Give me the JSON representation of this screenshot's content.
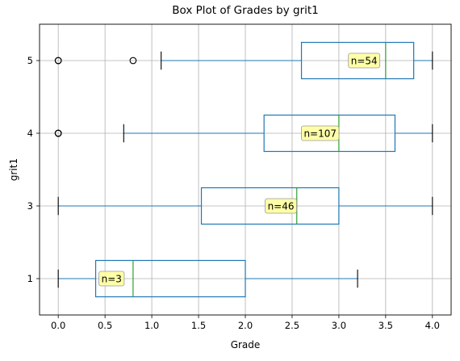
{
  "chart_data": {
    "type": "box",
    "title": "Box Plot of Grades by grit1",
    "xlabel": "Grade",
    "ylabel": "grit1",
    "orientation": "horizontal",
    "xlim": [
      -0.2,
      4.2
    ],
    "xticks": [
      "0.0",
      "0.5",
      "1.0",
      "1.5",
      "2.0",
      "2.5",
      "3.0",
      "3.5",
      "4.0"
    ],
    "xtick_values": [
      0,
      0.5,
      1.0,
      1.5,
      2.0,
      2.5,
      3.0,
      3.5,
      4.0
    ],
    "categories": [
      "1",
      "3",
      "4",
      "5"
    ],
    "grid": true,
    "colors": {
      "box": "#1f77b4",
      "median": "#2ca02c",
      "whisker": "#1f77b4",
      "cap": "#000000",
      "outlier": "#000000",
      "annotation_fill": "#ffff99",
      "annotation_edge": "#999999",
      "grid": "#b0b0b0"
    },
    "boxes": [
      {
        "category": "1",
        "min": 0.0,
        "q1": 0.4,
        "median": 0.8,
        "q3": 2.0,
        "max": 3.2,
        "outliers": [],
        "n_label": "n=3",
        "label_x": 0.57
      },
      {
        "category": "3",
        "min": 0.0,
        "q1": 1.53,
        "median": 2.55,
        "q3": 3.0,
        "max": 4.0,
        "outliers": [],
        "n_label": "n=46",
        "label_x": 2.38
      },
      {
        "category": "4",
        "min": 0.7,
        "q1": 2.2,
        "median": 3.0,
        "q3": 3.6,
        "max": 4.0,
        "outliers": [
          0.0,
          0.0,
          0.0
        ],
        "n_label": "n=107",
        "label_x": 2.8
      },
      {
        "category": "5",
        "min": 1.1,
        "q1": 2.6,
        "median": 3.5,
        "q3": 3.8,
        "max": 4.0,
        "outliers": [
          0.0,
          0.0,
          0.8
        ],
        "n_label": "n=54",
        "label_x": 3.27
      }
    ]
  }
}
